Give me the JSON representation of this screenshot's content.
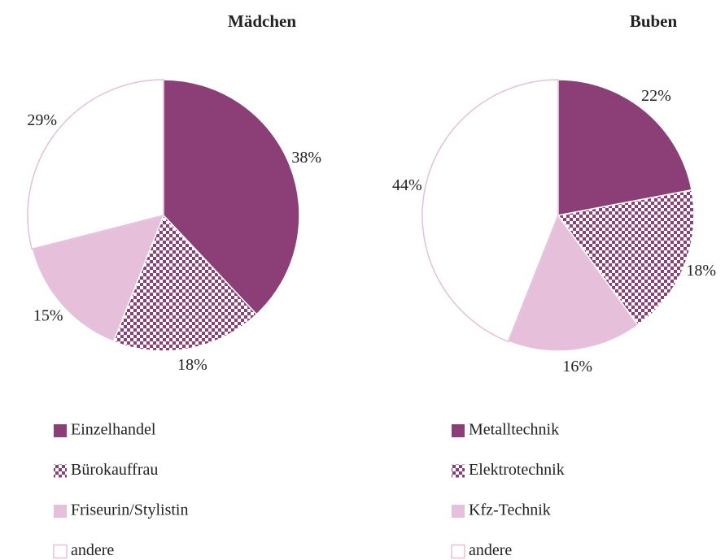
{
  "chart_data": [
    {
      "type": "pie",
      "title": "Mädchen",
      "categories": [
        "Einzelhandel",
        "Bürokauffrau",
        "Friseurin/Stylistin",
        "andere"
      ],
      "values": [
        38,
        18,
        15,
        29
      ],
      "value_labels": [
        "38%",
        "18%",
        "15%",
        "29%"
      ],
      "colors": [
        "#8b3f76",
        "#8b3f76",
        "#e6c0da",
        "#ffffff"
      ],
      "patterns": [
        "solid",
        "checker",
        "solid",
        "solid"
      ]
    },
    {
      "type": "pie",
      "title": "Buben",
      "categories": [
        "Metalltechnik",
        "Elektrotechnik",
        "Kfz-Technik",
        "andere"
      ],
      "values": [
        22,
        18,
        16,
        44
      ],
      "value_labels": [
        "22%",
        "18%",
        "16%",
        "44%"
      ],
      "colors": [
        "#8b3f76",
        "#8b3f76",
        "#e6c0da",
        "#ffffff"
      ],
      "patterns": [
        "solid",
        "checker",
        "solid",
        "solid"
      ]
    }
  ]
}
